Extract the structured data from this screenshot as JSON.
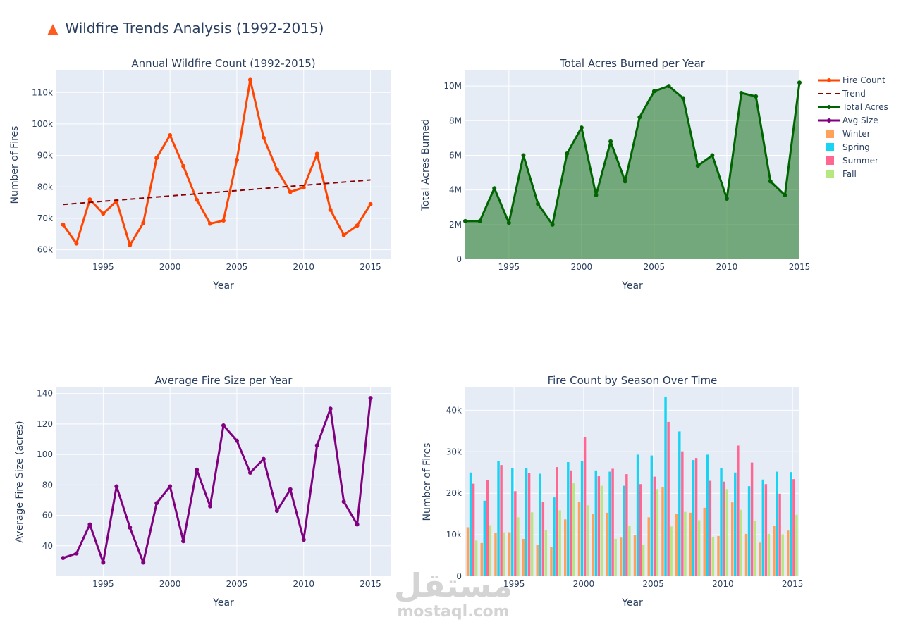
{
  "page": {
    "title_icon": "fire-icon",
    "title": "Wildfire Trends Analysis (1992-2015)",
    "watermark_ar": "مستقل",
    "watermark_en": "mostaql.com"
  },
  "colors": {
    "plot_bg": "#E5ECF6",
    "text": "#2a3f5f",
    "fire_count": "#FF4500",
    "trend": "#8B0000",
    "total_acres": "#006400",
    "total_acres_fill": "rgba(0,100,0,0.5)",
    "avg_size": "#800080",
    "winter": "#FFA15A",
    "spring": "#19D3F3",
    "summer": "#FF6692",
    "fall": "#B6E880"
  },
  "legend": {
    "position": "top-right",
    "items": [
      {
        "label": "Fire Count",
        "kind": "line-marker",
        "color": "#FF4500"
      },
      {
        "label": "Trend",
        "kind": "dash",
        "color": "#8B0000"
      },
      {
        "label": "Total Acres",
        "kind": "line-marker",
        "color": "#006400"
      },
      {
        "label": "Avg Size",
        "kind": "line-marker",
        "color": "#800080"
      },
      {
        "label": "Winter",
        "kind": "box",
        "color": "#FFA15A"
      },
      {
        "label": "Spring",
        "kind": "box",
        "color": "#19D3F3"
      },
      {
        "label": "Summer",
        "kind": "box",
        "color": "#FF6692"
      },
      {
        "label": "Fall",
        "kind": "box",
        "color": "#B6E880"
      }
    ]
  },
  "chart_data": [
    {
      "id": "annual-count",
      "type": "line",
      "title": "Annual Wildfire Count (1992-2015)",
      "xlabel": "Year",
      "ylabel": "Number of Fires",
      "xlim": [
        1991.5,
        2016.5
      ],
      "ylim": [
        57000,
        117000
      ],
      "xticks": [
        1995,
        2000,
        2005,
        2010,
        2015
      ],
      "yticks": [
        60000,
        70000,
        80000,
        90000,
        100000,
        110000
      ],
      "ytick_labels": [
        "60k",
        "70k",
        "80k",
        "90k",
        "100k",
        "110k"
      ],
      "x": [
        1992,
        1993,
        1994,
        1995,
        1996,
        1997,
        1998,
        1999,
        2000,
        2001,
        2002,
        2003,
        2004,
        2005,
        2006,
        2007,
        2008,
        2009,
        2010,
        2011,
        2012,
        2013,
        2014,
        2015
      ],
      "series": [
        {
          "name": "Fire Count",
          "values": [
            68000,
            62000,
            76000,
            71500,
            75500,
            61500,
            68500,
            89200,
            96400,
            86600,
            75900,
            68300,
            69300,
            88600,
            114000,
            95600,
            85500,
            78400,
            79800,
            90500,
            72700,
            64700,
            67700,
            74500
          ],
          "color": "#FF4500",
          "markers": true
        },
        {
          "name": "Trend",
          "values": [
            74400,
            82200
          ],
          "x": [
            1992,
            2015
          ],
          "color": "#8B0000",
          "dash": true
        }
      ],
      "grid": true
    },
    {
      "id": "total-acres",
      "type": "area",
      "title": "Total Acres Burned per Year",
      "xlabel": "Year",
      "ylabel": "Total Acres Burned",
      "xlim": [
        1992,
        2015
      ],
      "ylim": [
        0,
        10900000
      ],
      "xticks": [
        1995,
        2000,
        2005,
        2010,
        2015
      ],
      "yticks": [
        0,
        2000000,
        4000000,
        6000000,
        8000000,
        10000000
      ],
      "ytick_labels": [
        "0",
        "2M",
        "4M",
        "6M",
        "8M",
        "10M"
      ],
      "x": [
        1992,
        1993,
        1994,
        1995,
        1996,
        1997,
        1998,
        1999,
        2000,
        2001,
        2002,
        2003,
        2004,
        2005,
        2006,
        2007,
        2008,
        2009,
        2010,
        2011,
        2012,
        2013,
        2014,
        2015
      ],
      "series": [
        {
          "name": "Total Acres",
          "values": [
            2200000,
            2200000,
            4100000,
            2100000,
            6000000,
            3200000,
            2000000,
            6100000,
            7600000,
            3700000,
            6800000,
            4500000,
            8200000,
            9700000,
            10000000,
            9300000,
            5400000,
            6000000,
            3500000,
            9600000,
            9400000,
            4500000,
            3700000,
            10200000
          ],
          "color": "#006400",
          "markers": true
        }
      ],
      "grid": true
    },
    {
      "id": "avg-size",
      "type": "line",
      "title": "Average Fire Size per Year",
      "xlabel": "Year",
      "ylabel": "Average Fire Size (acres)",
      "xlim": [
        1991.5,
        2016.5
      ],
      "ylim": [
        20,
        144
      ],
      "xticks": [
        1995,
        2000,
        2005,
        2010,
        2015
      ],
      "yticks": [
        40,
        60,
        80,
        100,
        120,
        140
      ],
      "ytick_labels": [
        "40",
        "60",
        "80",
        "100",
        "120",
        "140"
      ],
      "x": [
        1992,
        1993,
        1994,
        1995,
        1996,
        1997,
        1998,
        1999,
        2000,
        2001,
        2002,
        2003,
        2004,
        2005,
        2006,
        2007,
        2008,
        2009,
        2010,
        2011,
        2012,
        2013,
        2014,
        2015
      ],
      "series": [
        {
          "name": "Avg Size",
          "values": [
            32,
            35,
            54,
            29,
            79,
            52,
            29,
            68,
            79,
            43,
            90,
            66,
            119,
            109,
            88,
            97,
            63,
            77,
            44,
            106,
            130,
            69,
            54,
            137
          ],
          "color": "#800080",
          "markers": true
        }
      ],
      "grid": true
    },
    {
      "id": "season-count",
      "type": "bar",
      "title": "Fire Count by Season Over Time",
      "xlabel": "Year",
      "ylabel": "Number of Fires",
      "xlim": [
        1991.5,
        2015.5
      ],
      "ylim": [
        0,
        45500
      ],
      "xticks": [
        1995,
        2000,
        2005,
        2010,
        2015
      ],
      "yticks": [
        0,
        10000,
        20000,
        30000,
        40000
      ],
      "ytick_labels": [
        "0",
        "10k",
        "20k",
        "30k",
        "40k"
      ],
      "categories": [
        1992,
        1993,
        1994,
        1995,
        1996,
        1997,
        1998,
        1999,
        2000,
        2001,
        2002,
        2003,
        2004,
        2005,
        2006,
        2007,
        2008,
        2009,
        2010,
        2011,
        2012,
        2013,
        2014,
        2015
      ],
      "series": [
        {
          "name": "Winter",
          "color": "#FFA15A",
          "values": [
            11800,
            8000,
            10500,
            10600,
            9000,
            7600,
            7000,
            13700,
            18000,
            15000,
            15300,
            9300,
            9900,
            14200,
            21500,
            15000,
            15300,
            16500,
            9700,
            17800,
            10200,
            8100,
            12100,
            11000
          ]
        },
        {
          "name": "Spring",
          "color": "#19D3F3",
          "values": [
            25000,
            18200,
            27700,
            26000,
            26100,
            24700,
            19000,
            27500,
            27700,
            25500,
            25200,
            21800,
            29300,
            29100,
            43300,
            34900,
            28000,
            29300,
            26000,
            25000,
            21700,
            23300,
            25200,
            25100
          ]
        },
        {
          "name": "Summer",
          "color": "#FF6692",
          "values": [
            22300,
            23200,
            26800,
            20500,
            24800,
            17900,
            26300,
            25500,
            33500,
            24100,
            25900,
            24600,
            22200,
            24000,
            37200,
            30100,
            28500,
            23000,
            22800,
            31500,
            27400,
            22200,
            19900,
            23400
          ]
        },
        {
          "name": "Fall",
          "color": "#B6E880",
          "values": [
            8600,
            12300,
            10600,
            14200,
            15400,
            11100,
            15900,
            22400,
            17100,
            21800,
            9000,
            12100,
            7500,
            21000,
            12000,
            15500,
            13500,
            9500,
            21000,
            16000,
            13400,
            10200,
            10100,
            14800
          ]
        }
      ],
      "grid": true
    }
  ]
}
